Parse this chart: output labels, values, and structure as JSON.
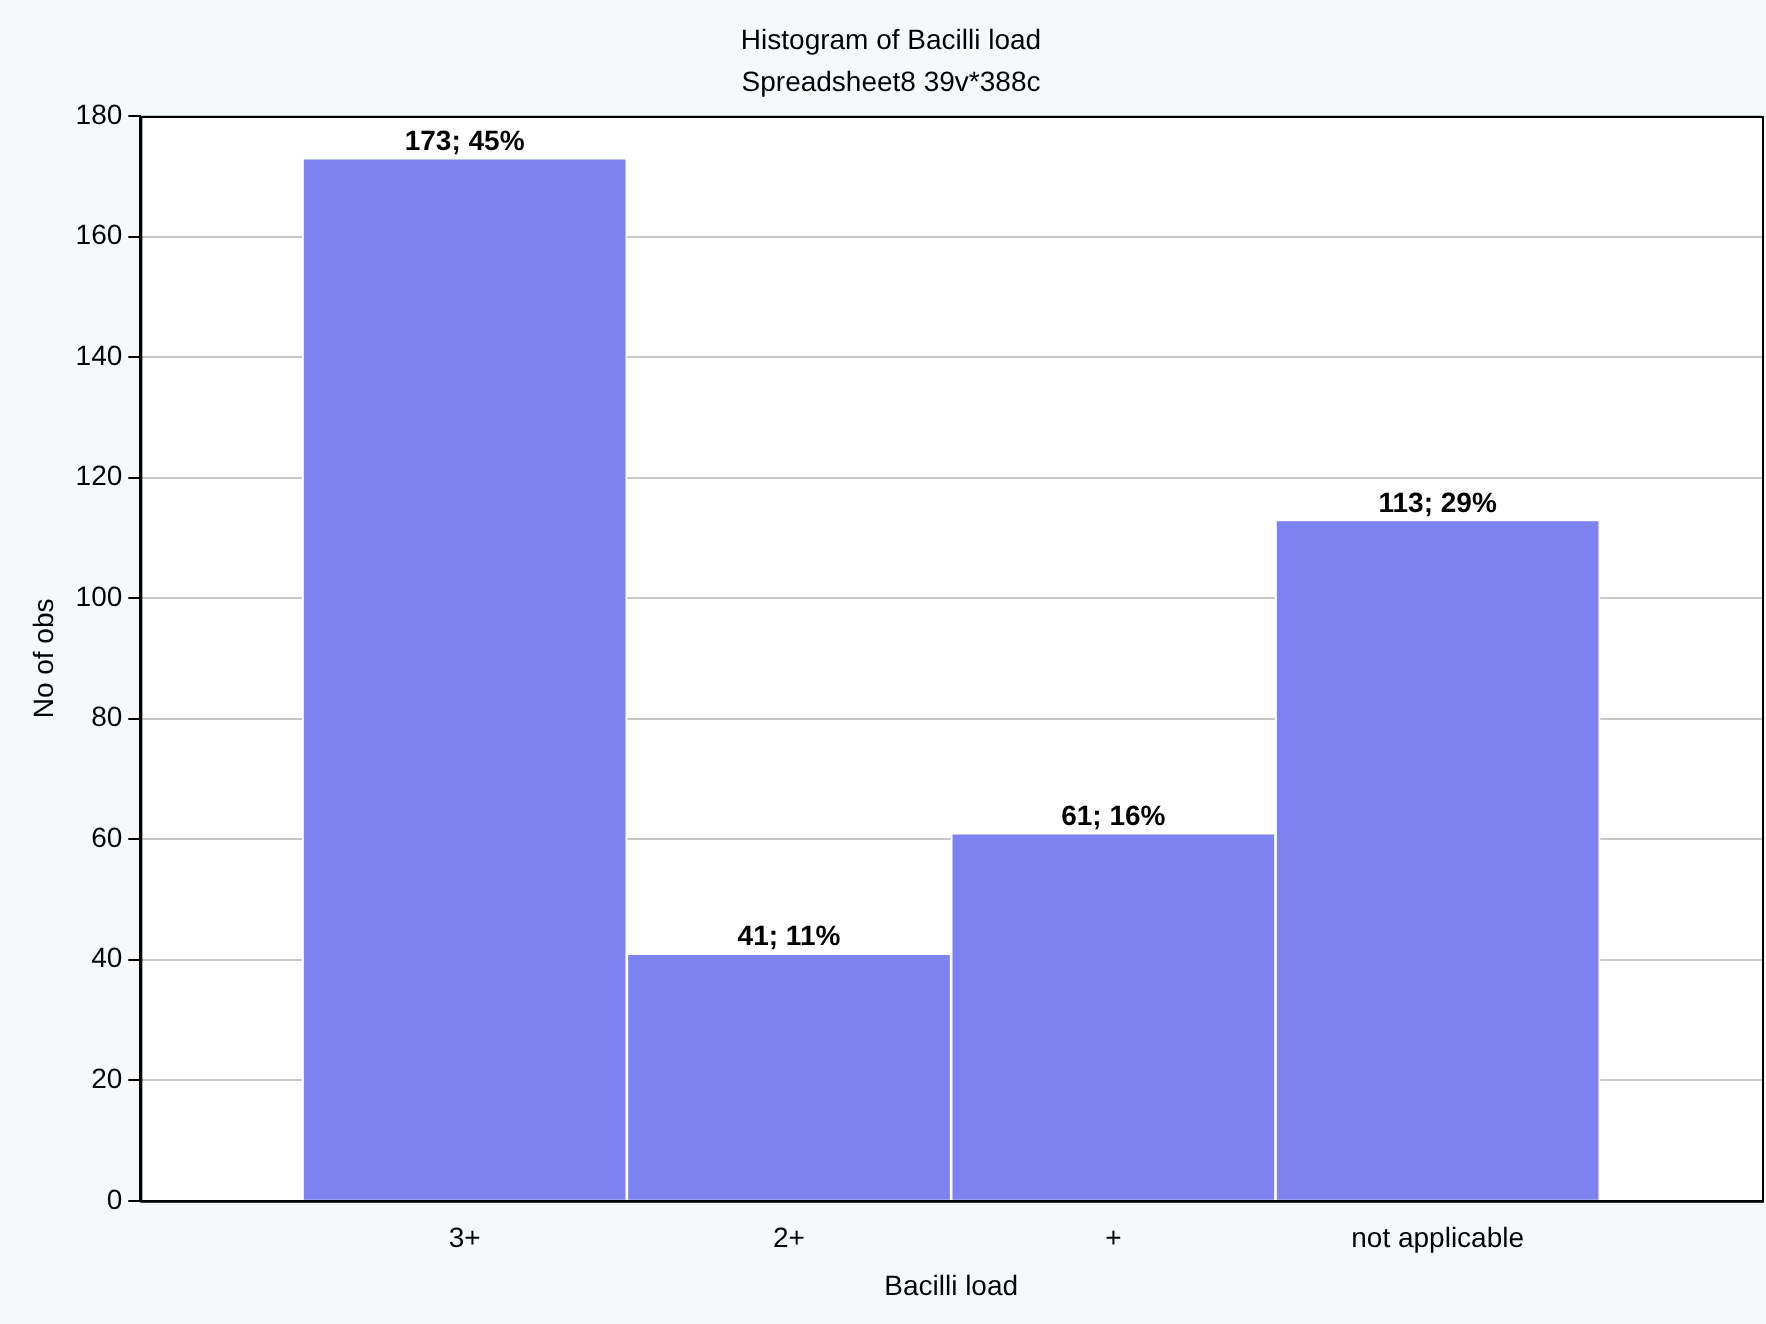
{
  "chart_data": {
    "type": "bar",
    "title": "Histogram of Bacilli load",
    "subtitle": "Spreadsheet8 39v*388c",
    "xlabel": "Bacilli load",
    "ylabel": "No of obs",
    "categories": [
      "3+",
      "2+",
      "+",
      "not applicable"
    ],
    "values": [
      173,
      41,
      61,
      113
    ],
    "value_labels": [
      "173; 45%",
      "41; 11%",
      "61; 16%",
      "113; 29%"
    ],
    "color": "#7c82f0",
    "ylim": [
      0,
      180
    ],
    "yticks": [
      0,
      20,
      40,
      60,
      80,
      100,
      120,
      140,
      160,
      180
    ],
    "grid": "y"
  }
}
